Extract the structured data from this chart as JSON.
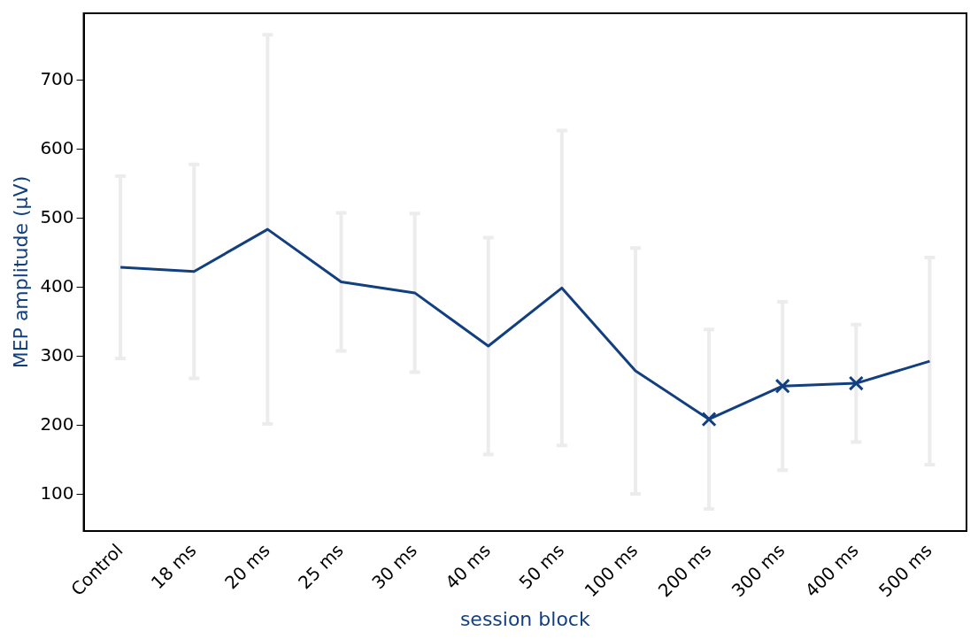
{
  "chart_data": {
    "type": "line",
    "xlabel": "session block",
    "ylabel": "MEP amplitude (µV)",
    "categories": [
      "Control",
      "18 ms",
      "20 ms",
      "25 ms",
      "30 ms",
      "40 ms",
      "50 ms",
      "100 ms",
      "200 ms",
      "300 ms",
      "400 ms",
      "500 ms"
    ],
    "series": [
      {
        "color": "#123f7f",
        "values": [
          429,
          423,
          484,
          408,
          392,
          315,
          399,
          279,
          209,
          257,
          261,
          293
        ],
        "errors": [
          132,
          155,
          282,
          100,
          115,
          157,
          228,
          178,
          130,
          122,
          85,
          150
        ],
        "marker": "none"
      },
      {
        "type": "scatter",
        "color": "#123f7f",
        "x": [
          "200 ms",
          "300 ms",
          "400 ms"
        ],
        "values": [
          209,
          257,
          261
        ],
        "marker": "cross"
      }
    ],
    "ylim": [
      47,
      797
    ],
    "yticks": [
      100,
      200,
      300,
      400,
      500,
      600,
      700
    ],
    "grid": false,
    "legend": false
  }
}
